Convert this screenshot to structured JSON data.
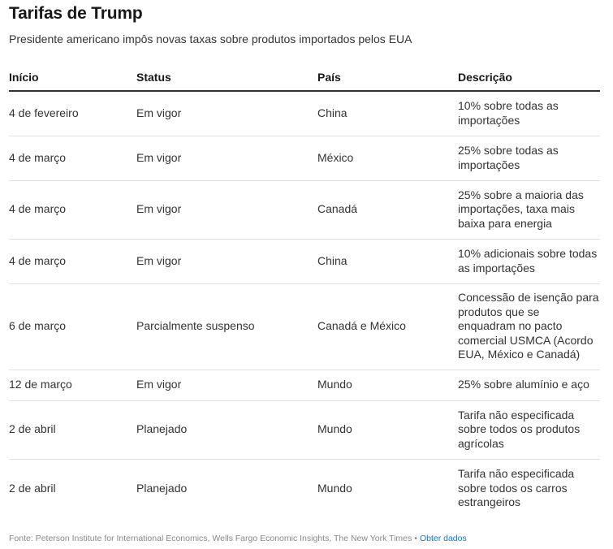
{
  "title": "Tarifas de Trump",
  "subtitle": "Presidente americano impôs novas taxas sobre produtos importados pelos EUA",
  "columns": [
    "Início",
    "Status",
    "País",
    "Descrição"
  ],
  "rows": [
    [
      "4 de fevereiro",
      "Em vigor",
      "China",
      "10% sobre todas as importações"
    ],
    [
      "4 de março",
      "Em vigor",
      "México",
      "25% sobre todas as importações"
    ],
    [
      "4 de março",
      "Em vigor",
      "Canadá",
      "25% sobre a maioria das importações, taxa mais baixa para energia"
    ],
    [
      "4 de março",
      "Em vigor",
      "China",
      "10% adicionais sobre todas as importações"
    ],
    [
      "6 de março",
      "Parcialmente suspenso",
      "Canadá e México",
      "Concessão de isenção para produtos que se enquadram no pacto comercial USMCA (Acordo EUA, México e Canadá)"
    ],
    [
      "12 de março",
      "Em vigor",
      "Mundo",
      "25% sobre alumínio e aço"
    ],
    [
      "2 de abril",
      "Planejado",
      "Mundo",
      "Tarifa não especificada sobre todos os produtos agrícolas"
    ],
    [
      "2 de abril",
      "Planejado",
      "Mundo",
      "Tarifa não especificada sobre todos os carros estrangeiros"
    ]
  ],
  "footer": {
    "source": "Fonte: Peterson Institute for International Economics, Wells Fargo Economic Insights, The New York Times",
    "separator": "•",
    "link": "Obter dados"
  },
  "colors": {
    "link": "#1a73c7",
    "rule": "#333333",
    "divider": "#e0e0e0"
  }
}
